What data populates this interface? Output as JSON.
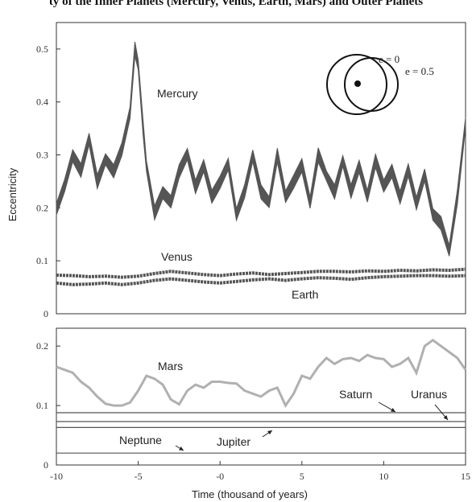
{
  "header_fragment": "ty of the Inner Planets (Mercury, Venus, Earth, Mars) and Outer Planets",
  "chart_data": [
    {
      "type": "line",
      "panel": "inner planets",
      "ylabel": "Eccentricity",
      "ylim": [
        0,
        0.55
      ],
      "yticks": [
        "0",
        "0.1",
        "0.2",
        "0.3",
        "0.4",
        "0.5"
      ],
      "xlim": [
        -10,
        15
      ],
      "inset": {
        "label_left": "e = 0",
        "label_right": "e = 0.5"
      },
      "series": [
        {
          "name": "Mercury",
          "x": [
            -10,
            -9.5,
            -9,
            -8.5,
            -8,
            -7.5,
            -7,
            -6.5,
            -6,
            -5.5,
            -5.2,
            -5,
            -4.7,
            -4.5,
            -4,
            -3.5,
            -3,
            -2.5,
            -2,
            -1.5,
            -1,
            -0.5,
            0,
            0.5,
            1,
            1.5,
            2,
            2.5,
            3,
            3.5,
            4,
            4.5,
            5,
            5.5,
            6,
            6.5,
            7,
            7.5,
            8,
            8.5,
            9,
            9.5,
            10,
            10.5,
            11,
            11.5,
            12,
            12.5,
            13,
            13.5,
            14,
            14.5,
            15
          ],
          "y": [
            0.2,
            0.24,
            0.3,
            0.27,
            0.33,
            0.25,
            0.29,
            0.27,
            0.31,
            0.38,
            0.5,
            0.47,
            0.35,
            0.28,
            0.19,
            0.23,
            0.21,
            0.27,
            0.3,
            0.24,
            0.28,
            0.22,
            0.25,
            0.28,
            0.19,
            0.23,
            0.3,
            0.23,
            0.21,
            0.3,
            0.22,
            0.25,
            0.28,
            0.21,
            0.3,
            0.26,
            0.23,
            0.29,
            0.23,
            0.28,
            0.22,
            0.29,
            0.24,
            0.27,
            0.22,
            0.27,
            0.21,
            0.26,
            0.19,
            0.17,
            0.12,
            0.22,
            0.36
          ],
          "color": "#555555"
        },
        {
          "name": "Venus",
          "x": [
            -10,
            -9,
            -8,
            -7,
            -6,
            -5,
            -4,
            -3,
            -2,
            -1,
            0,
            1,
            2,
            3,
            4,
            5,
            6,
            7,
            8,
            9,
            10,
            11,
            12,
            13,
            14,
            15
          ],
          "y": [
            0.073,
            0.072,
            0.07,
            0.071,
            0.069,
            0.071,
            0.076,
            0.08,
            0.077,
            0.074,
            0.072,
            0.075,
            0.077,
            0.074,
            0.076,
            0.078,
            0.08,
            0.08,
            0.079,
            0.081,
            0.08,
            0.082,
            0.081,
            0.083,
            0.082,
            0.084
          ],
          "color": "#555555"
        },
        {
          "name": "Earth",
          "x": [
            -10,
            -9,
            -8,
            -7,
            -6,
            -5,
            -4,
            -3,
            -2,
            -1,
            0,
            1,
            2,
            3,
            4,
            5,
            6,
            7,
            8,
            9,
            10,
            11,
            12,
            13,
            14,
            15
          ],
          "y": [
            0.058,
            0.055,
            0.056,
            0.058,
            0.055,
            0.058,
            0.063,
            0.066,
            0.063,
            0.06,
            0.058,
            0.061,
            0.064,
            0.066,
            0.063,
            0.066,
            0.068,
            0.067,
            0.065,
            0.068,
            0.07,
            0.071,
            0.072,
            0.072,
            0.071,
            0.072
          ],
          "color": "#555555"
        }
      ]
    },
    {
      "type": "line",
      "panel": "outer planets",
      "xlabel": "Time (thousand of years)",
      "ylim": [
        0,
        0.23
      ],
      "yticks": [
        "0",
        "0.1",
        "0.2"
      ],
      "xlim": [
        -10,
        15
      ],
      "xticks": [
        "-10",
        "-5",
        "-0",
        "5",
        "10",
        "15"
      ],
      "series": [
        {
          "name": "Mars",
          "x": [
            -10,
            -9.5,
            -9,
            -8.5,
            -8,
            -7.5,
            -7,
            -6.5,
            -6,
            -5.5,
            -5,
            -4.5,
            -4,
            -3.5,
            -3,
            -2.5,
            -2,
            -1.5,
            -1,
            -0.5,
            0,
            0.5,
            1,
            1.5,
            2,
            2.5,
            3,
            3.5,
            4,
            4.5,
            5,
            5.5,
            6,
            6.5,
            7,
            7.5,
            8,
            8.5,
            9,
            9.5,
            10,
            10.5,
            11,
            11.5,
            12,
            12.5,
            13,
            13.5,
            14,
            14.5,
            15
          ],
          "y": [
            0.165,
            0.16,
            0.155,
            0.14,
            0.13,
            0.115,
            0.103,
            0.1,
            0.1,
            0.105,
            0.125,
            0.15,
            0.145,
            0.135,
            0.11,
            0.102,
            0.125,
            0.135,
            0.13,
            0.14,
            0.14,
            0.138,
            0.137,
            0.125,
            0.12,
            0.115,
            0.125,
            0.13,
            0.1,
            0.12,
            0.15,
            0.145,
            0.165,
            0.18,
            0.17,
            0.178,
            0.18,
            0.175,
            0.185,
            0.18,
            0.178,
            0.165,
            0.17,
            0.18,
            0.155,
            0.2,
            0.21,
            0.2,
            0.19,
            0.18,
            0.16
          ],
          "color": "#b0b0b0"
        },
        {
          "name": "Saturn",
          "x": [
            -10,
            15
          ],
          "y": [
            0.088,
            0.088
          ],
          "color": "#555555"
        },
        {
          "name": "Uranus",
          "x": [
            -10,
            15
          ],
          "y": [
            0.073,
            0.073
          ],
          "color": "#555555"
        },
        {
          "name": "Jupiter",
          "x": [
            -10,
            15
          ],
          "y": [
            0.063,
            0.063
          ],
          "color": "#555555"
        },
        {
          "name": "Neptune",
          "x": [
            -10,
            15
          ],
          "y": [
            0.02,
            0.02
          ],
          "color": "#555555"
        }
      ]
    }
  ]
}
